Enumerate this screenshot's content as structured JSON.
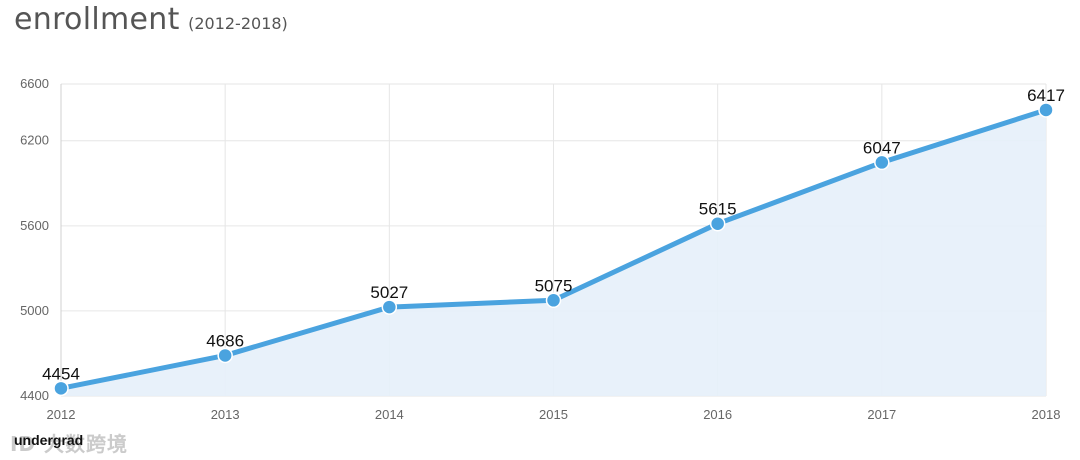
{
  "header": {
    "title": "enrollment",
    "subtitle": "(2012-2018)"
  },
  "legend": {
    "label": "undergrad"
  },
  "watermark": {
    "text": "ID 大数跨境"
  },
  "colors": {
    "line": "#4aa3df",
    "fill": "#e6f0f9",
    "grid": "#e6e6e6",
    "text": "#111111",
    "tick": "#666666"
  },
  "chart_data": {
    "type": "area",
    "title": "enrollment",
    "subtitle": "(2012-2018)",
    "categories": [
      "2012",
      "2013",
      "2014",
      "2015",
      "2016",
      "2017",
      "2018"
    ],
    "series": [
      {
        "name": "undergrad",
        "values": [
          4454,
          4686,
          5027,
          5075,
          5615,
          6047,
          6417
        ]
      }
    ],
    "ylim": [
      4400,
      6600
    ],
    "yticks": [
      4400,
      5000,
      5600,
      6200,
      6600
    ],
    "grid": true,
    "data_labels": true,
    "legend_position": "bottom-left"
  }
}
